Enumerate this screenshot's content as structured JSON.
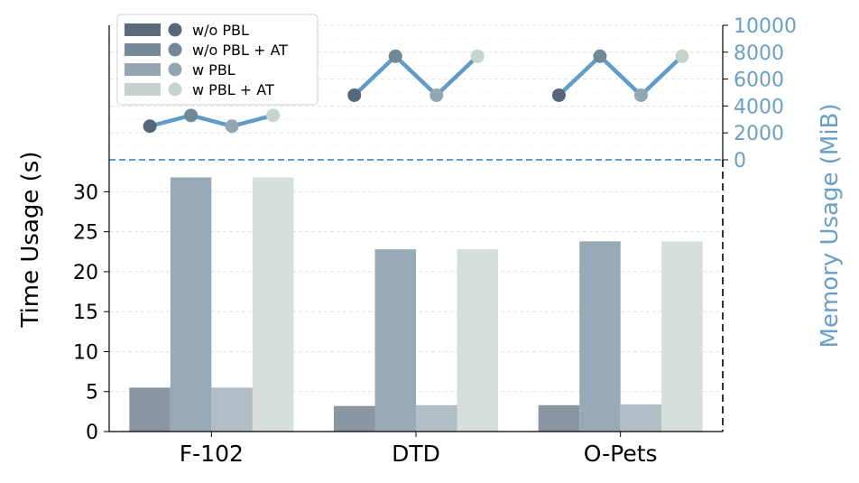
{
  "chart_data": {
    "type": "bar+line",
    "categories": [
      "F-102",
      "DTD",
      "O-Pets"
    ],
    "time_axis": {
      "label": "Time Usage (s)",
      "ylim": [
        0,
        34
      ],
      "ticks": [
        "0",
        "5",
        "10",
        "15",
        "20",
        "25",
        "30"
      ],
      "tick_values": [
        0,
        5,
        10,
        15,
        20,
        25,
        30
      ]
    },
    "memory_axis": {
      "label": "Memory Usage (MiB)",
      "ylim": [
        0,
        10000
      ],
      "ticks": [
        "0",
        "2000",
        "4000",
        "6000",
        "8000",
        "10000"
      ],
      "tick_values": [
        0,
        2000,
        4000,
        6000,
        8000,
        10000
      ]
    },
    "time_series": [
      {
        "name": "w/o PBL",
        "values": [
          5.5,
          3.2,
          3.3
        ]
      },
      {
        "name": "w/o PBL + AT",
        "values": [
          31.8,
          22.8,
          23.8
        ]
      },
      {
        "name": "w PBL",
        "values": [
          5.5,
          3.3,
          3.4
        ]
      },
      {
        "name": "w PBL + AT",
        "values": [
          31.8,
          22.8,
          23.8
        ]
      }
    ],
    "memory_series": [
      {
        "name": "w/o PBL",
        "values": [
          2500,
          4800,
          4800
        ]
      },
      {
        "name": "w/o PBL + AT",
        "values": [
          3300,
          7700,
          7700
        ]
      },
      {
        "name": "w PBL",
        "values": [
          2500,
          4800,
          4800
        ]
      },
      {
        "name": "w PBL + AT",
        "values": [
          3300,
          7700,
          7700
        ]
      }
    ],
    "legend": {
      "placement": "top-left",
      "entries": [
        "w/o PBL",
        "w/o PBL + AT",
        "w PBL",
        "w PBL + AT"
      ]
    },
    "colors": {
      "bars": [
        "#8a96a1",
        "#98aab6",
        "#b1bec6",
        "#d6dfdb"
      ],
      "legend_bars": [
        "#5b6b7b",
        "#748a98",
        "#94a7b0",
        "#c5d1cb"
      ],
      "dots": [
        "#56677a",
        "#718897",
        "#93a6b1",
        "#c6d4cc"
      ],
      "memory_line": "#5f9bcb",
      "memory_text": "#6aa0c8",
      "divider": "#5f9bcb"
    }
  }
}
